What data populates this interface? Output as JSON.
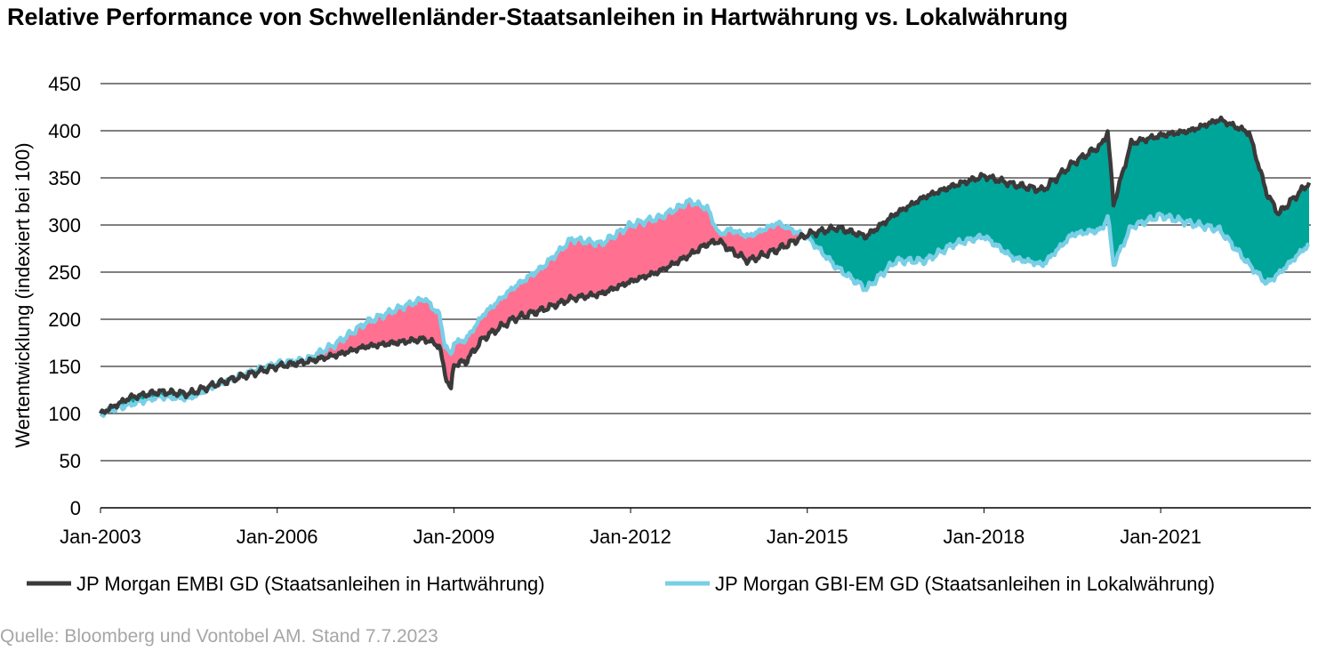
{
  "title": "Relative Performance von Schwellenländer-Staatsanleihen in Hartwährung vs. Lokalwährung",
  "source": "Quelle: Bloomberg und Vontobel AM. Stand 7.7.2023",
  "chart_data": {
    "type": "line",
    "title": "Relative Performance von Schwellenländer-Staatsanleihen in Hartwährung vs. Lokalwährung",
    "xlabel": "",
    "ylabel": "Wertentwicklung (indexiert bei 100)",
    "ylim": [
      0,
      450
    ],
    "xlim": [
      "Jan-2003",
      "Jul-2023"
    ],
    "yticks": [
      "0",
      "50",
      "100",
      "150",
      "200",
      "250",
      "300",
      "350",
      "400",
      "450"
    ],
    "xticks": [
      "Jan-2003",
      "Jan-2006",
      "Jan-2009",
      "Jan-2012",
      "Jan-2015",
      "Jan-2018",
      "Jan-2021"
    ],
    "grid": "horizontal",
    "legend_position": "bottom",
    "fill_colors": {
      "local_above_hard": "#ff7091",
      "hard_above_local": "#00a599"
    },
    "series": [
      {
        "name": "JP Morgan EMBI GD (Staatsanleihen in Hartwährung)",
        "color": "#3a3a3a",
        "x": [
          2003.0,
          2003.5,
          2004.0,
          2004.5,
          2005.0,
          2005.5,
          2006.0,
          2006.5,
          2007.0,
          2007.5,
          2008.0,
          2008.5,
          2008.75,
          2008.85,
          2008.95,
          2009.0,
          2009.2,
          2009.5,
          2010.0,
          2010.5,
          2011.0,
          2011.5,
          2012.0,
          2012.5,
          2013.0,
          2013.3,
          2013.5,
          2013.7,
          2014.0,
          2014.5,
          2015.0,
          2015.5,
          2016.0,
          2016.5,
          2017.0,
          2017.5,
          2018.0,
          2018.5,
          2019.0,
          2019.5,
          2020.0,
          2020.1,
          2020.2,
          2020.5,
          2021.0,
          2021.5,
          2022.0,
          2022.5,
          2022.8,
          2023.0,
          2023.52
        ],
        "values": [
          100,
          117,
          123,
          121,
          132,
          141,
          150,
          155,
          162,
          171,
          175,
          179,
          172,
          142,
          125,
          152,
          155,
          180,
          200,
          210,
          222,
          227,
          240,
          251,
          268,
          280,
          283,
          273,
          262,
          274,
          290,
          297,
          288,
          312,
          330,
          342,
          352,
          343,
          337,
          365,
          385,
          400,
          322,
          387,
          395,
          400,
          412,
          398,
          334,
          312,
          345
        ]
      },
      {
        "name": "JP Morgan GBI-EM GD (Staatsanleihen in Lokalwährung)",
        "color": "#78cfe6",
        "x": [
          2003.0,
          2003.5,
          2004.0,
          2004.5,
          2005.0,
          2005.5,
          2006.0,
          2006.5,
          2007.0,
          2007.5,
          2008.0,
          2008.5,
          2008.75,
          2008.85,
          2008.95,
          2009.0,
          2009.2,
          2009.5,
          2010.0,
          2010.5,
          2011.0,
          2011.5,
          2012.0,
          2012.5,
          2013.0,
          2013.3,
          2013.5,
          2013.7,
          2014.0,
          2014.5,
          2015.0,
          2015.5,
          2016.0,
          2016.5,
          2017.0,
          2017.5,
          2018.0,
          2018.5,
          2019.0,
          2019.5,
          2020.0,
          2020.1,
          2020.2,
          2020.5,
          2021.0,
          2021.5,
          2022.0,
          2022.5,
          2022.8,
          2023.0,
          2023.52
        ],
        "values": [
          100,
          110,
          118,
          116,
          131,
          143,
          153,
          157,
          174,
          196,
          210,
          222,
          205,
          172,
          162,
          175,
          178,
          205,
          233,
          255,
          285,
          280,
          300,
          308,
          325,
          318,
          290,
          295,
          288,
          302,
          287,
          255,
          232,
          262,
          262,
          280,
          288,
          265,
          258,
          290,
          295,
          310,
          258,
          298,
          310,
          302,
          295,
          258,
          238,
          248,
          280
        ]
      }
    ]
  }
}
